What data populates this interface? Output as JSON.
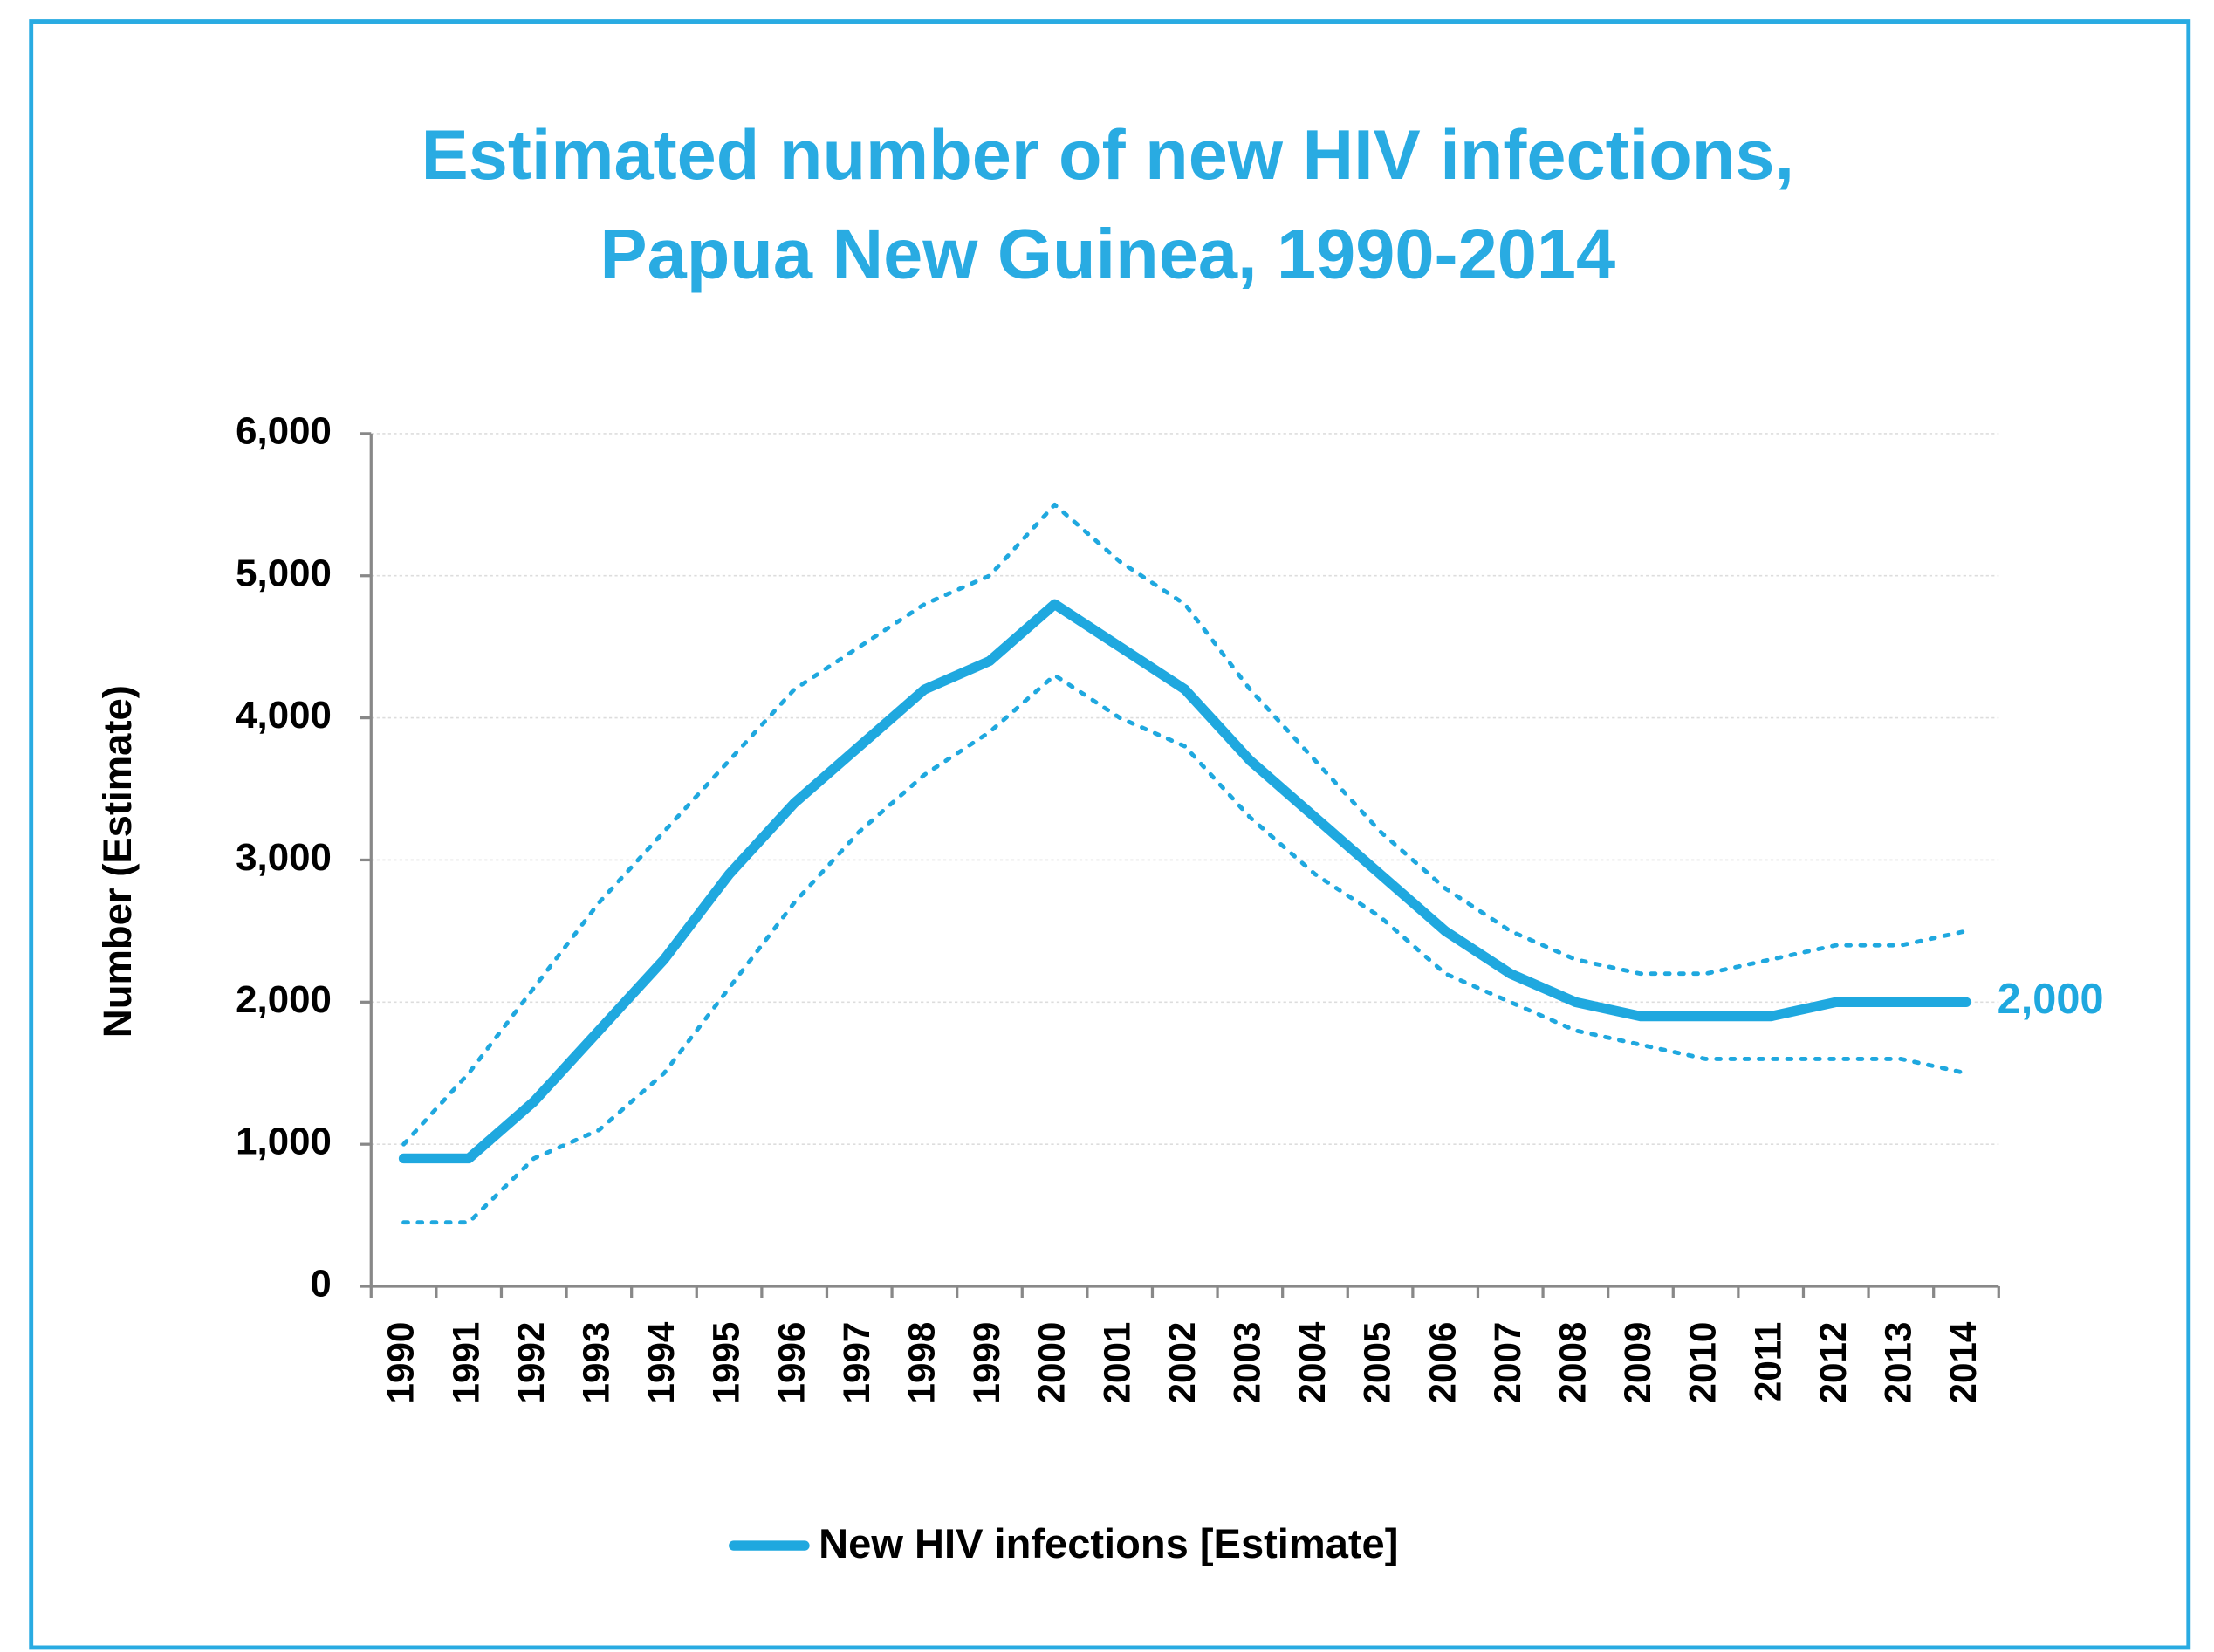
{
  "chart_data": {
    "type": "line",
    "title": "Estimated number of new HIV infections,",
    "subtitle": "Papua New Guinea, 1990-2014",
    "y_label": "Number (Estimate)",
    "categories": [
      "1990",
      "1991",
      "1992",
      "1993",
      "1994",
      "1995",
      "1996",
      "1997",
      "1998",
      "1999",
      "2000",
      "2001",
      "2002",
      "2003",
      "2004",
      "2005",
      "2006",
      "2007",
      "2008",
      "2009",
      "2010",
      "2011",
      "2012",
      "2013",
      "2014"
    ],
    "series": [
      {
        "name": "New HIV infections [Estimate]",
        "color": "#1fa8df",
        "style": "solid",
        "values": [
          900,
          900,
          1300,
          1800,
          2300,
          2900,
          3400,
          3800,
          4200,
          4400,
          4800,
          4500,
          4200,
          3700,
          3300,
          2900,
          2500,
          2200,
          2000,
          1900,
          1900,
          1900,
          2000,
          2000,
          2000
        ],
        "value_labels": [
          null,
          null,
          null,
          null,
          null,
          null,
          null,
          null,
          null,
          null,
          null,
          null,
          null,
          null,
          null,
          null,
          null,
          null,
          null,
          null,
          null,
          null,
          null,
          null,
          "2,000"
        ]
      },
      {
        "color": "#1fa8df",
        "style": "dotted",
        "values": [
          1000,
          1500,
          2100,
          2700,
          3200,
          3700,
          4200,
          4500,
          4800,
          5000,
          5500,
          5100,
          4800,
          4200,
          3700,
          3200,
          2800,
          2500,
          2300,
          2200,
          2200,
          2300,
          2400,
          2400,
          2500
        ]
      },
      {
        "color": "#1fa8df",
        "style": "dotted",
        "values": [
          450,
          450,
          900,
          1100,
          1500,
          2100,
          2700,
          3200,
          3600,
          3900,
          4300,
          4000,
          3800,
          3300,
          2900,
          2600,
          2200,
          2000,
          1800,
          1700,
          1600,
          1600,
          1600,
          1600,
          1500
        ]
      }
    ],
    "ylim": [
      0,
      6000
    ],
    "yticks": [
      0,
      {
        "value": 1000,
        "label": "1,000"
      },
      {
        "value": 2000,
        "label": "2,000"
      },
      {
        "value": 3000,
        "label": "3,000"
      },
      {
        "value": 4000,
        "label": "4,000"
      },
      {
        "value": 5000,
        "label": "5,000"
      },
      {
        "value": 6000,
        "label": "6,000"
      }
    ],
    "grid": true,
    "legend": "bottom"
  }
}
